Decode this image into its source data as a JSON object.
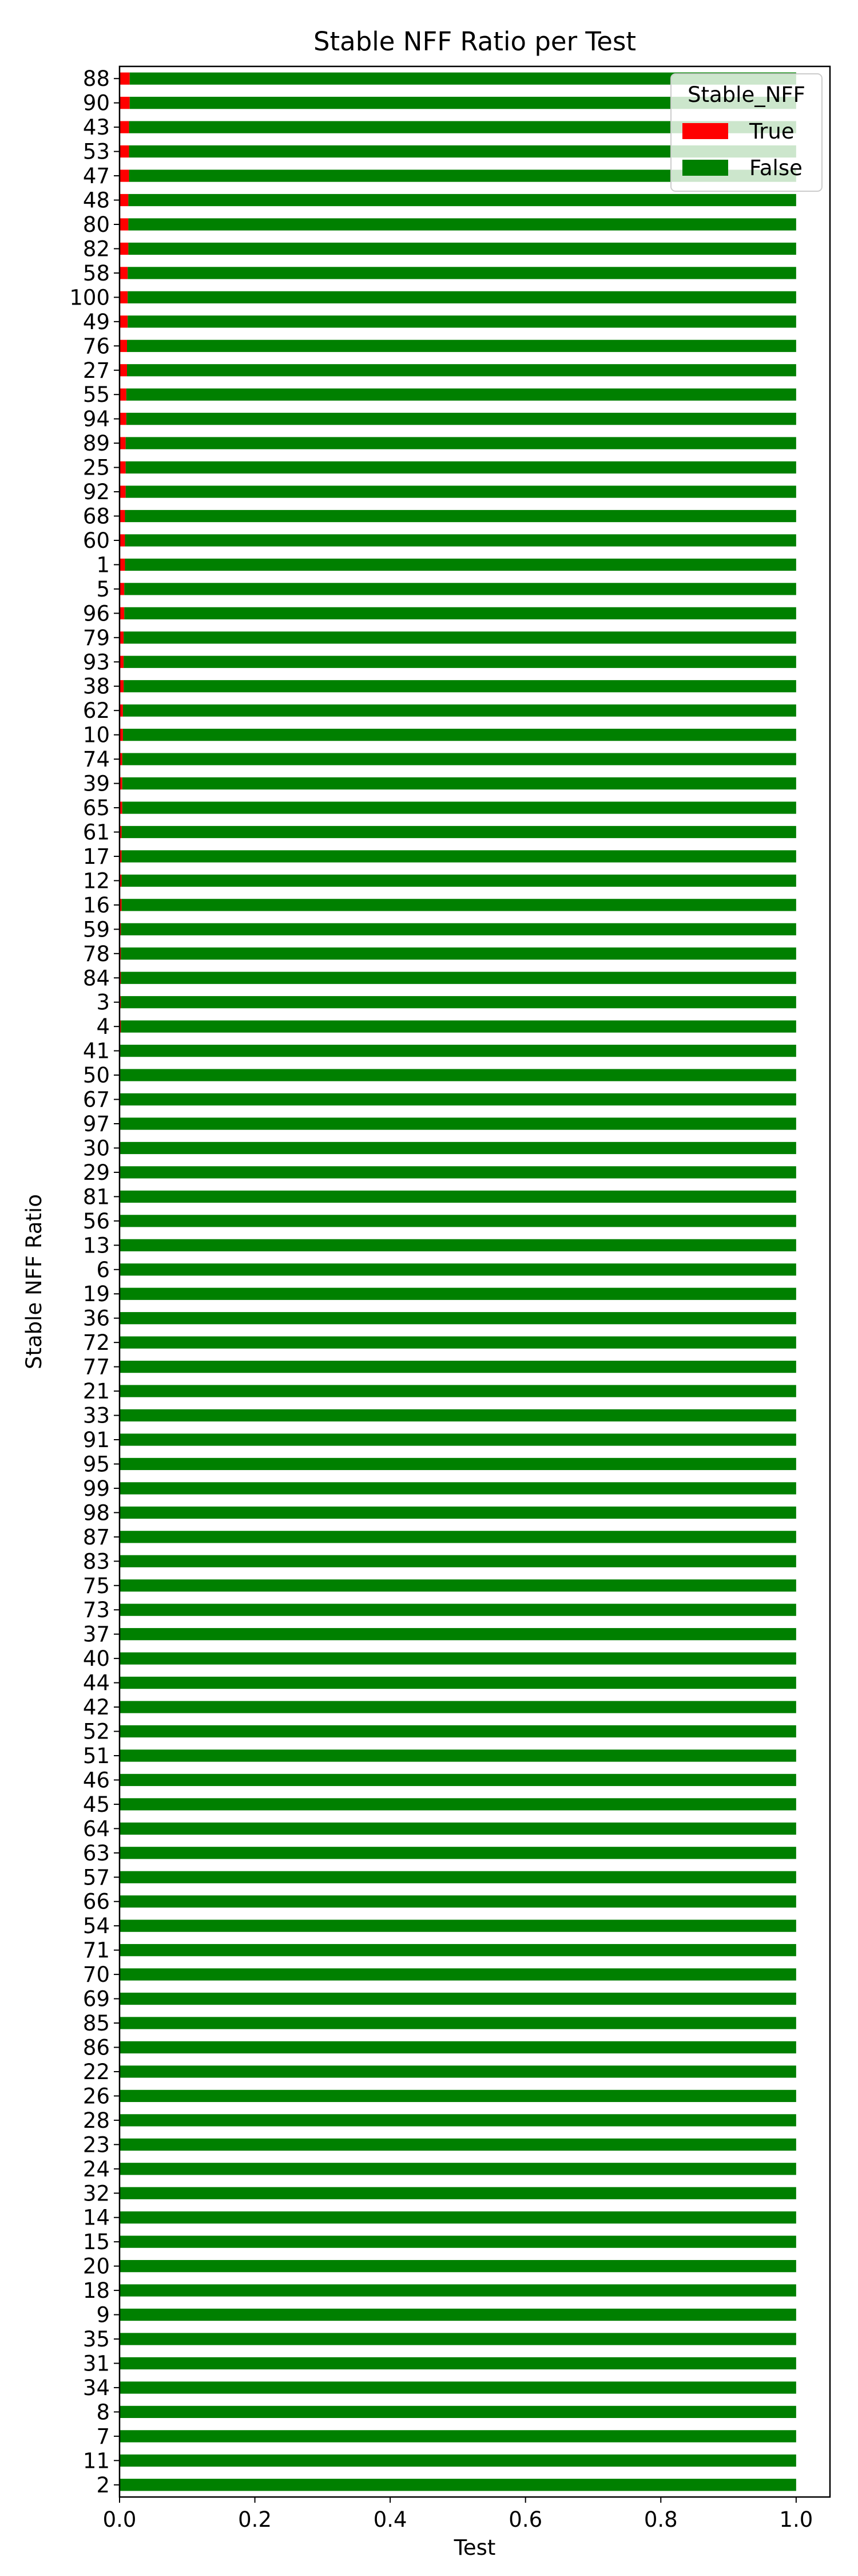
{
  "chart_data": {
    "type": "bar",
    "orientation": "horizontal",
    "stacked": true,
    "title": "Stable NFF Ratio per Test",
    "xlabel": "Test",
    "ylabel": "Stable NFF Ratio",
    "xlim": [
      0.0,
      1.05
    ],
    "xticks": [
      "0.0",
      "0.2",
      "0.4",
      "0.6",
      "0.8",
      "1.0"
    ],
    "grid": false,
    "legend": {
      "title": "Stable_NFF",
      "position": "top-right"
    },
    "categories": [
      "88",
      "90",
      "43",
      "53",
      "47",
      "48",
      "80",
      "82",
      "58",
      "100",
      "49",
      "76",
      "27",
      "55",
      "94",
      "89",
      "25",
      "92",
      "68",
      "60",
      "1",
      "5",
      "96",
      "79",
      "93",
      "38",
      "62",
      "10",
      "74",
      "39",
      "65",
      "61",
      "17",
      "12",
      "16",
      "59",
      "78",
      "84",
      "3",
      "4",
      "41",
      "50",
      "67",
      "97",
      "30",
      "29",
      "81",
      "56",
      "13",
      "6",
      "19",
      "36",
      "72",
      "77",
      "21",
      "33",
      "91",
      "95",
      "99",
      "98",
      "87",
      "83",
      "75",
      "73",
      "37",
      "40",
      "44",
      "42",
      "52",
      "51",
      "46",
      "45",
      "64",
      "63",
      "57",
      "66",
      "54",
      "71",
      "70",
      "69",
      "85",
      "86",
      "22",
      "26",
      "28",
      "23",
      "24",
      "32",
      "14",
      "15",
      "20",
      "18",
      "9",
      "35",
      "31",
      "34",
      "8",
      "7",
      "11",
      "2"
    ],
    "series": [
      {
        "name": "True",
        "color": "#ff0000",
        "values": [
          0.015,
          0.015,
          0.014,
          0.014,
          0.014,
          0.013,
          0.013,
          0.013,
          0.012,
          0.012,
          0.012,
          0.011,
          0.011,
          0.01,
          0.01,
          0.009,
          0.009,
          0.009,
          0.008,
          0.008,
          0.008,
          0.007,
          0.007,
          0.006,
          0.006,
          0.006,
          0.005,
          0.005,
          0.004,
          0.004,
          0.004,
          0.003,
          0.003,
          0.003,
          0.003,
          0.002,
          0.002,
          0.002,
          0.002,
          0.002,
          0.001,
          0.001,
          0.001,
          0.001,
          0.001,
          0.001,
          0.001,
          0.001,
          0.001,
          0.001,
          0,
          0,
          0,
          0,
          0,
          0,
          0,
          0,
          0,
          0,
          0,
          0,
          0,
          0,
          0,
          0,
          0,
          0,
          0,
          0,
          0,
          0,
          0,
          0,
          0,
          0,
          0,
          0,
          0,
          0,
          0,
          0,
          0,
          0,
          0,
          0,
          0,
          0,
          0,
          0,
          0,
          0,
          0,
          0,
          0,
          0,
          0,
          0,
          0,
          0
        ]
      },
      {
        "name": "False",
        "color": "#008000",
        "values": [
          0.985,
          0.985,
          0.986,
          0.986,
          0.986,
          0.987,
          0.987,
          0.987,
          0.988,
          0.988,
          0.988,
          0.989,
          0.989,
          0.99,
          0.99,
          0.991,
          0.991,
          0.991,
          0.992,
          0.992,
          0.992,
          0.993,
          0.993,
          0.994,
          0.994,
          0.994,
          0.995,
          0.995,
          0.996,
          0.996,
          0.996,
          0.997,
          0.997,
          0.997,
          0.997,
          0.998,
          0.998,
          0.998,
          0.998,
          0.998,
          0.999,
          0.999,
          0.999,
          0.999,
          0.999,
          0.999,
          0.999,
          0.999,
          0.999,
          0.999,
          1,
          1,
          1,
          1,
          1,
          1,
          1,
          1,
          1,
          1,
          1,
          1,
          1,
          1,
          1,
          1,
          1,
          1,
          1,
          1,
          1,
          1,
          1,
          1,
          1,
          1,
          1,
          1,
          1,
          1,
          1,
          1,
          1,
          1,
          1,
          1,
          1,
          1,
          1,
          1,
          1,
          1,
          1,
          1,
          1,
          1,
          1,
          1,
          1,
          1
        ]
      }
    ]
  }
}
